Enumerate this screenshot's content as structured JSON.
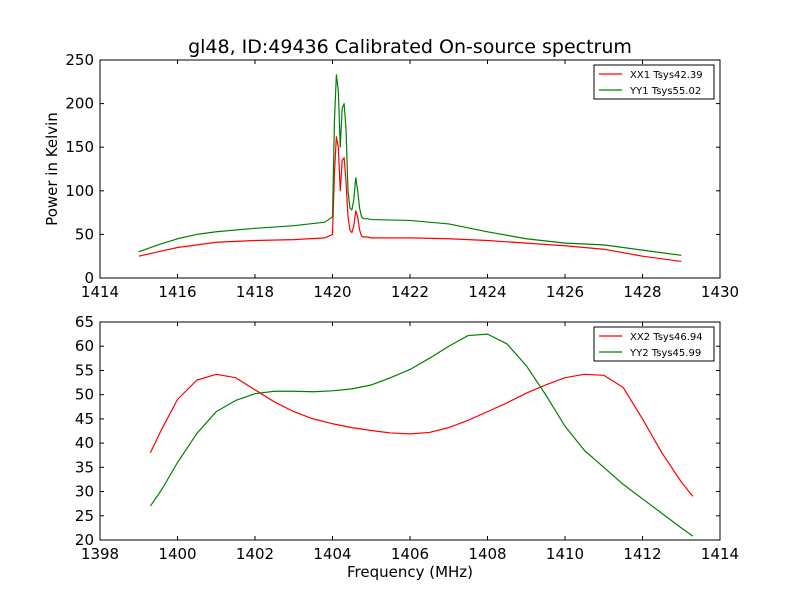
{
  "title": "gl48, ID:49436 Calibrated On-source spectrum",
  "colors": {
    "xx": "#ff0000",
    "yy": "#008000"
  },
  "chart_data": [
    {
      "type": "line",
      "title": "gl48, ID:49436 Calibrated On-source spectrum",
      "xlabel": "",
      "ylabel": "Power in Kelvin",
      "xlim": [
        1414,
        1430
      ],
      "ylim": [
        0,
        250
      ],
      "xticks": [
        1414,
        1416,
        1418,
        1420,
        1422,
        1424,
        1426,
        1428,
        1430
      ],
      "yticks": [
        0,
        50,
        100,
        150,
        200,
        250
      ],
      "grid": false,
      "legend_position": "top-right",
      "series": [
        {
          "name": "XX1 Tsys42.39",
          "color": "#ff0000",
          "x": [
            1415.0,
            1415.5,
            1416.0,
            1416.5,
            1417.0,
            1418.0,
            1419.0,
            1419.8,
            1420.0,
            1420.05,
            1420.1,
            1420.15,
            1420.2,
            1420.25,
            1420.3,
            1420.35,
            1420.4,
            1420.45,
            1420.5,
            1420.55,
            1420.6,
            1420.65,
            1420.7,
            1420.75,
            1420.8,
            1420.9,
            1421.0,
            1422.0,
            1423.0,
            1424.0,
            1425.0,
            1426.0,
            1427.0,
            1428.0,
            1429.0
          ],
          "y": [
            25,
            30,
            35,
            38,
            41,
            43,
            44,
            46,
            50,
            120,
            162,
            150,
            100,
            135,
            138,
            110,
            70,
            55,
            52,
            60,
            77,
            70,
            55,
            48,
            47,
            47,
            46,
            46,
            45,
            43,
            40,
            37,
            33,
            25,
            19
          ]
        },
        {
          "name": "YY1 Tsys55.02",
          "color": "#008000",
          "x": [
            1415.0,
            1415.5,
            1416.0,
            1416.5,
            1417.0,
            1418.0,
            1419.0,
            1419.8,
            1420.0,
            1420.05,
            1420.1,
            1420.15,
            1420.2,
            1420.25,
            1420.3,
            1420.35,
            1420.4,
            1420.45,
            1420.5,
            1420.55,
            1420.6,
            1420.65,
            1420.7,
            1420.75,
            1420.8,
            1420.9,
            1421.0,
            1422.0,
            1423.0,
            1424.0,
            1425.0,
            1426.0,
            1427.0,
            1428.0,
            1429.0
          ],
          "y": [
            30,
            38,
            45,
            50,
            53,
            57,
            60,
            64,
            70,
            180,
            233,
            215,
            150,
            195,
            200,
            170,
            100,
            80,
            78,
            90,
            115,
            100,
            80,
            70,
            68,
            68,
            67,
            66,
            62,
            53,
            45,
            40,
            38,
            32,
            26
          ]
        }
      ]
    },
    {
      "type": "line",
      "title": "",
      "xlabel": "Frequency (MHz)",
      "ylabel": "",
      "xlim": [
        1398,
        1414
      ],
      "ylim": [
        20,
        65
      ],
      "xticks": [
        1398,
        1400,
        1402,
        1404,
        1406,
        1408,
        1410,
        1412,
        1414
      ],
      "yticks": [
        20,
        25,
        30,
        35,
        40,
        45,
        50,
        55,
        60,
        65
      ],
      "grid": false,
      "legend_position": "top-right",
      "series": [
        {
          "name": "XX2 Tsys46.94",
          "color": "#ff0000",
          "x": [
            1399.3,
            1399.6,
            1400.0,
            1400.5,
            1401.0,
            1401.5,
            1402.0,
            1402.5,
            1403.0,
            1403.5,
            1404.0,
            1404.5,
            1405.0,
            1405.5,
            1406.0,
            1406.5,
            1407.0,
            1407.5,
            1408.0,
            1408.5,
            1409.0,
            1409.5,
            1410.0,
            1410.5,
            1411.0,
            1411.5,
            1412.0,
            1412.5,
            1413.0,
            1413.3
          ],
          "y": [
            38,
            43,
            49,
            53,
            54.2,
            53.5,
            51,
            48.5,
            46.5,
            45,
            44,
            43.2,
            42.6,
            42.1,
            41.9,
            42.2,
            43.2,
            44.7,
            46.5,
            48.3,
            50.3,
            52,
            53.5,
            54.2,
            54,
            51.5,
            45,
            38,
            32,
            29
          ]
        },
        {
          "name": "YY2 Tsys45.99",
          "color": "#008000",
          "x": [
            1399.3,
            1399.6,
            1400.0,
            1400.5,
            1401.0,
            1401.5,
            1402.0,
            1402.5,
            1403.0,
            1403.5,
            1404.0,
            1404.5,
            1405.0,
            1405.5,
            1406.0,
            1406.5,
            1407.0,
            1407.5,
            1408.0,
            1408.5,
            1409.0,
            1409.5,
            1410.0,
            1410.5,
            1411.0,
            1411.5,
            1412.0,
            1412.5,
            1413.0,
            1413.3
          ],
          "y": [
            27,
            30.5,
            36,
            42,
            46.5,
            48.8,
            50.2,
            50.7,
            50.7,
            50.6,
            50.8,
            51.2,
            52,
            53.5,
            55.2,
            57.5,
            60,
            62.2,
            62.5,
            60.5,
            56,
            50,
            43.5,
            38.5,
            35,
            31.5,
            28.5,
            25.5,
            22.5,
            20.8
          ]
        }
      ]
    }
  ]
}
